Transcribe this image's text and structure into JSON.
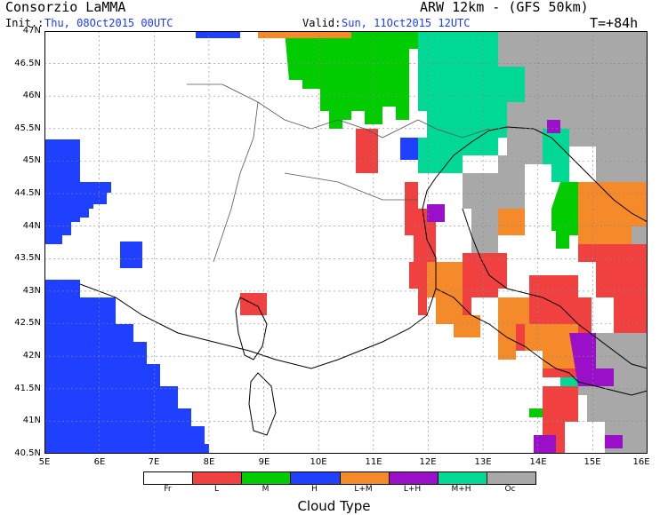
{
  "header": {
    "org": "Consorzio LaMMA",
    "model": "ARW 12km - (GFS 50km)",
    "init_label": "Init.:",
    "init_value": "Thu, 08Oct2015 00UTC",
    "valid_label": "Valid:",
    "valid_value": "Sun, 11Oct2015 12UTC",
    "forecast_step": "T=+84h"
  },
  "map": {
    "lat_labels": [
      "47N",
      "46.5N",
      "46N",
      "45.5N",
      "45N",
      "44.5N",
      "44N",
      "43.5N",
      "43N",
      "42.5N",
      "42N",
      "41.5N",
      "41N",
      "40.5N"
    ],
    "lon_labels": [
      "5E",
      "6E",
      "7E",
      "8E",
      "9E",
      "10E",
      "11E",
      "12E",
      "13E",
      "14E",
      "15E",
      "16E"
    ],
    "lat_range": [
      40.5,
      47
    ],
    "lon_range": [
      5,
      16
    ]
  },
  "legend": {
    "title": "Cloud Type",
    "items": [
      {
        "label": "Fr",
        "color": "#ffffff"
      },
      {
        "label": "L",
        "color": "#f04040"
      },
      {
        "label": "M",
        "color": "#00cc00"
      },
      {
        "label": "H",
        "color": "#2040ff"
      },
      {
        "label": "L+M",
        "color": "#f58a2a"
      },
      {
        "label": "L+H",
        "color": "#9a10c8"
      },
      {
        "label": "M+H",
        "color": "#00d896"
      },
      {
        "label": "Oc",
        "color": "#a8a8a8"
      }
    ]
  }
}
